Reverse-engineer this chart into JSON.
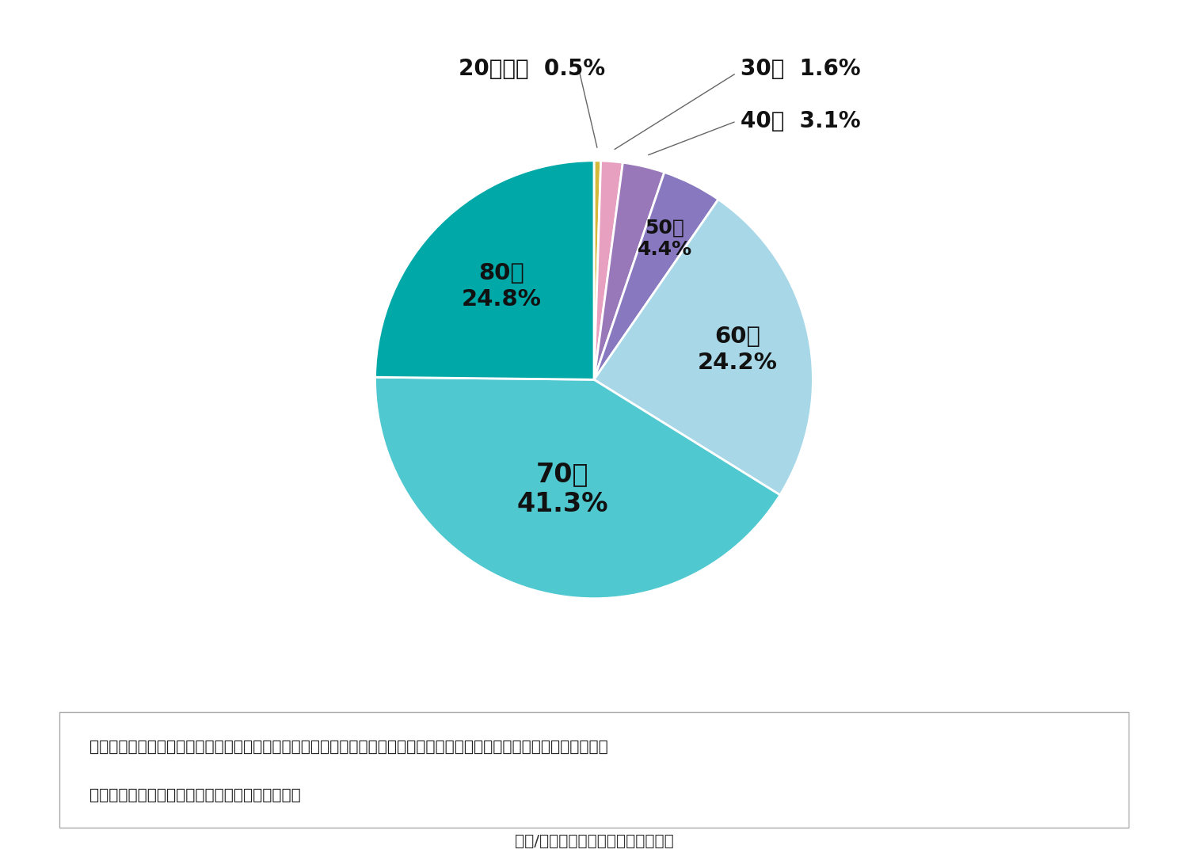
{
  "slices": [
    {
      "label": "20代以下",
      "pct": 0.5,
      "color": "#d4b83a"
    },
    {
      "label": "30代",
      "pct": 1.6,
      "color": "#e8a0c0"
    },
    {
      "label": "40代",
      "pct": 3.1,
      "color": "#9878b8"
    },
    {
      "label": "50代",
      "pct": 4.4,
      "color": "#8878c0"
    },
    {
      "label": "60代",
      "pct": 24.2,
      "color": "#a8d8e8"
    },
    {
      "label": "70代",
      "pct": 41.3,
      "color": "#50c8d0"
    },
    {
      "label": "80代",
      "pct": 24.8,
      "color": "#00a8a8"
    }
  ],
  "note_line1": "基幹的農業従事者（個人経営体）：農業に主として従事した世帯員（農業就業人口）のうち、調査期日前１年間のふだん",
  "note_line2": "の主な状態が「仕事に従事していた者」のこと。",
  "source": "出典/農林水産省「農林業センサス」",
  "bg_color": "#ffffff"
}
